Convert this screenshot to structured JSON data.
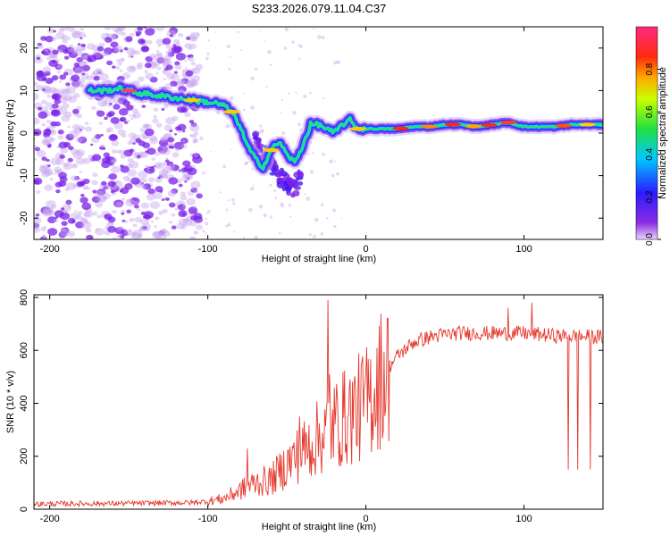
{
  "figure_title": "S233.2026.079.11.04.C37",
  "colors": {
    "snr_line": "#e53a2f",
    "scatter_light": "#c8a6f0",
    "scatter_dark": "#7a20e8",
    "axis": "#000000"
  },
  "chart_data": [
    {
      "type": "heatmap",
      "title": "",
      "xlabel": "Height of straight line (km)",
      "ylabel": "Frequency (Hz)",
      "xlim": [
        -210,
        150
      ],
      "ylim": [
        -25,
        25
      ],
      "xticks": [
        -200,
        -100,
        0,
        100
      ],
      "yticks": [
        -20,
        -10,
        0,
        10,
        20
      ],
      "colorbar": {
        "label": "Normalized spectral amplitude",
        "range": [
          0,
          1
        ],
        "ticks": [
          0.0,
          0.2,
          0.4,
          0.6,
          0.8
        ],
        "tick_labels": [
          "0.0",
          "0.2",
          "0.4",
          "0.6",
          "0.8"
        ],
        "colormap": "hsv-rainbow (purple-blue-cyan-green-yellow-red-magenta)"
      },
      "ridge": {
        "x": [
          -175,
          -165,
          -155,
          -145,
          -135,
          -125,
          -115,
          -105,
          -95,
          -90,
          -85,
          -80,
          -75,
          -70,
          -65,
          -60,
          -55,
          -50,
          -45,
          -40,
          -35,
          -30,
          -25,
          -20,
          -15,
          -10,
          -5,
          0,
          10,
          20,
          30,
          40,
          50,
          60,
          70,
          80,
          90,
          100,
          110,
          120,
          130,
          140,
          150
        ],
        "y": [
          10,
          10,
          10.5,
          9.5,
          9,
          8.5,
          8,
          7.5,
          7,
          6.5,
          5,
          2,
          -3,
          -6,
          -8,
          -4,
          -2,
          -5,
          -7,
          -3,
          2,
          2,
          1,
          0,
          2,
          3,
          1,
          1,
          1,
          1,
          1.5,
          1.5,
          2,
          2,
          1.5,
          2,
          2.5,
          1.5,
          1.5,
          1.5,
          2,
          2,
          2
        ]
      },
      "secondary_branch": {
        "x": [
          -70,
          -60,
          -55,
          -50,
          -45,
          -40
        ],
        "y": [
          -1,
          -7,
          -10,
          -12,
          -13,
          -9
        ]
      }
    },
    {
      "type": "line",
      "title": "",
      "xlabel": "Height of straight line (km)",
      "ylabel": "SNR (10 * v/v)",
      "xlim": [
        -210,
        150
      ],
      "ylim": [
        0,
        810
      ],
      "xticks": [
        -200,
        -100,
        0,
        100
      ],
      "yticks": [
        0,
        200,
        400,
        600,
        800
      ],
      "series": [
        {
          "name": "SNR",
          "envelope_x": [
            -210,
            -150,
            -110,
            -100,
            -90,
            -80,
            -70,
            -60,
            -50,
            -40,
            -30,
            -20,
            -10,
            0,
            10,
            20,
            30,
            40,
            50,
            60,
            80,
            100,
            120,
            150
          ],
          "envelope_y": [
            20,
            22,
            25,
            30,
            40,
            70,
            100,
            110,
            170,
            220,
            270,
            320,
            360,
            400,
            500,
            580,
            630,
            650,
            660,
            665,
            665,
            665,
            655,
            650
          ],
          "spikes_x": [
            -75,
            -42,
            -24,
            -23,
            0,
            90,
            105,
            128,
            134,
            142
          ],
          "spikes_y": [
            230,
            350,
            790,
            510,
            520,
            760,
            780,
            150,
            150,
            150
          ]
        }
      ]
    }
  ]
}
